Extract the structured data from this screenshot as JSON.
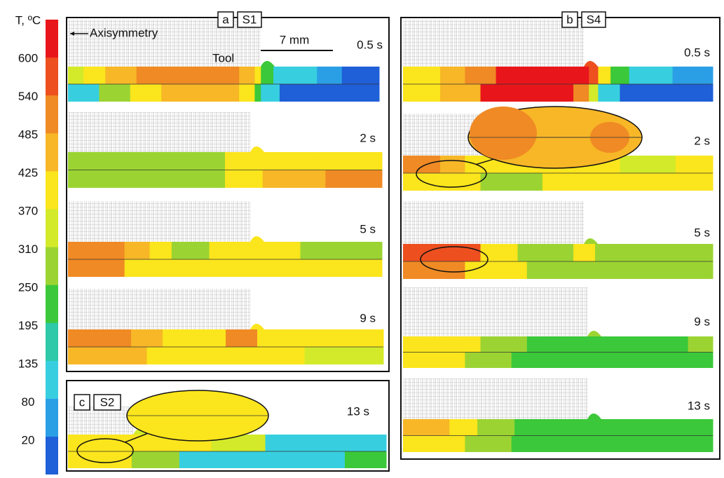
{
  "colorbar": {
    "title": "T, ºC",
    "ticks": [
      600,
      540,
      485,
      425,
      370,
      310,
      250,
      195,
      135,
      80,
      20
    ]
  },
  "panels": [
    {
      "letter": "a",
      "label": "S1",
      "annotations": [
        "Axisymmetry",
        "Tool",
        "7 mm"
      ],
      "times": [
        "0.5 s",
        "2 s",
        "5 s",
        "9 s"
      ]
    },
    {
      "letter": "b",
      "label": "S4",
      "times": [
        "0.5 s",
        "2 s",
        "5 s",
        "9 s",
        "13 s"
      ]
    },
    {
      "letter": "c",
      "label": "S2",
      "times": [
        "13 s"
      ]
    }
  ]
}
